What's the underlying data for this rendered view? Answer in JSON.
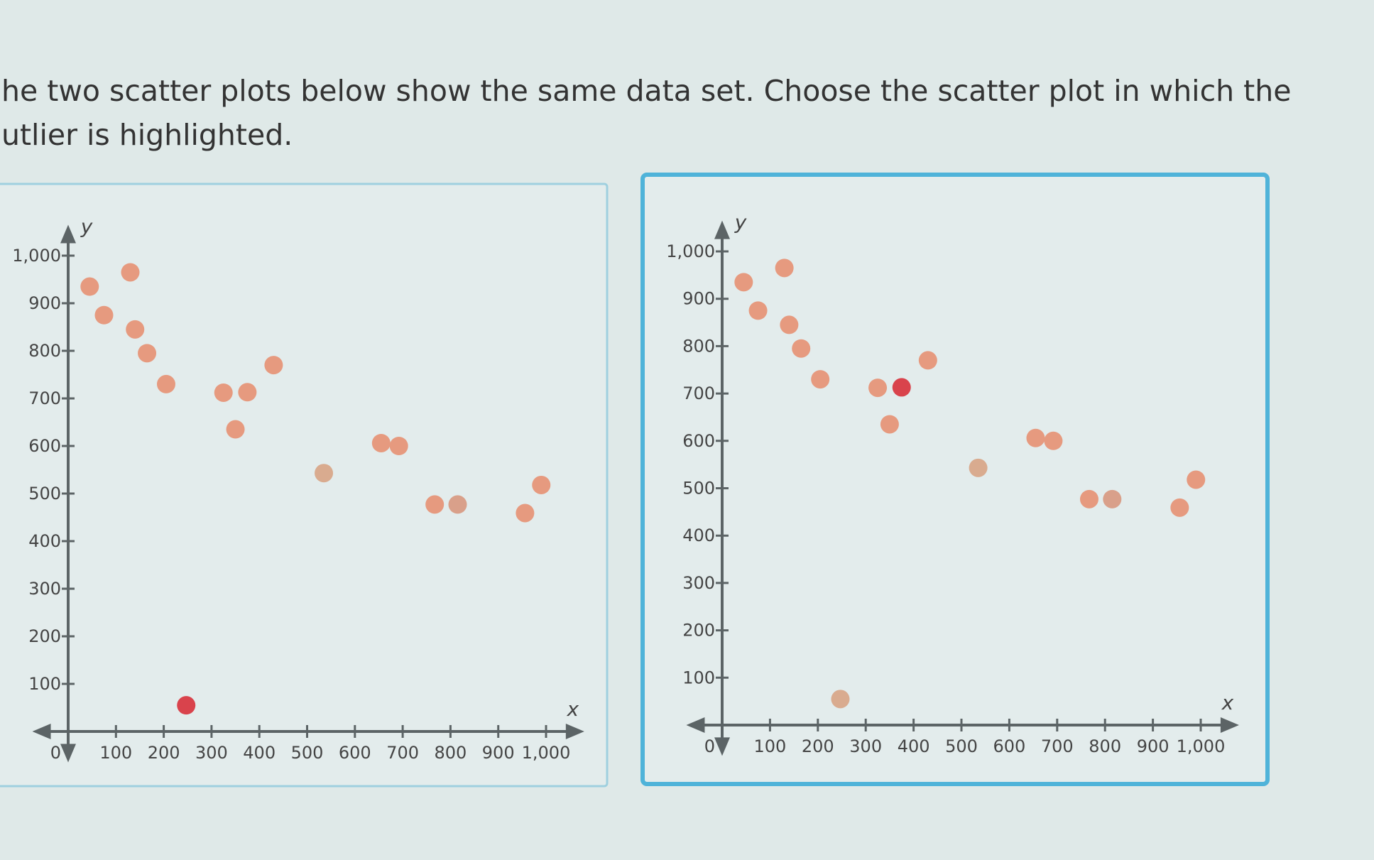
{
  "question": [
    "he two scatter plots below show the same data set. Choose the scatter plot in which the",
    "utlier is highlighted."
  ],
  "chart_data": [
    {
      "type": "scatter",
      "x_label": "x",
      "y_label": "y",
      "x": [
        45,
        130,
        75,
        140,
        165,
        205,
        325,
        375,
        430,
        350,
        535,
        655,
        692,
        767,
        815,
        956,
        990,
        247
      ],
      "y": [
        935,
        965,
        875,
        845,
        795,
        730,
        712,
        713,
        770,
        635,
        543,
        606,
        600,
        477,
        477,
        459,
        518,
        55
      ],
      "point_colors": [
        "#e69a7f",
        "#e69a7f",
        "#e69a7f",
        "#e69a7f",
        "#e69a7f",
        "#e69a7f",
        "#e69a7f",
        "#e69a7f",
        "#e69a7f",
        "#e69a7f",
        "#d9ab8f",
        "#e69a7f",
        "#e69a7f",
        "#e69a7f",
        "#d9a08a",
        "#e69a7f",
        "#e69a7f",
        "#d9434c"
      ],
      "xlim": [
        -75,
        1080
      ],
      "ylim": [
        -65,
        1065
      ],
      "xticks": [
        0,
        100,
        200,
        300,
        400,
        500,
        600,
        700,
        800,
        900,
        {
          "value": 1000,
          "label": "1,000"
        }
      ],
      "yticks": [
        100,
        200,
        300,
        400,
        500,
        600,
        700,
        800,
        900,
        {
          "value": 1000,
          "label": "1,000"
        }
      ]
    },
    {
      "type": "scatter",
      "x_label": "x",
      "y_label": "y",
      "x": [
        45,
        130,
        75,
        140,
        165,
        205,
        325,
        375,
        430,
        350,
        535,
        655,
        692,
        767,
        815,
        956,
        990,
        247
      ],
      "y": [
        935,
        965,
        875,
        845,
        795,
        730,
        712,
        713,
        770,
        635,
        543,
        606,
        600,
        477,
        477,
        459,
        518,
        55
      ],
      "point_colors": [
        "#e69a7f",
        "#e69a7f",
        "#e69a7f",
        "#e69a7f",
        "#e69a7f",
        "#e69a7f",
        "#e69a7f",
        "#d9434c",
        "#e69a7f",
        "#e69a7f",
        "#d9ab8f",
        "#e69a7f",
        "#e69a7f",
        "#e69a7f",
        "#d9a08a",
        "#e69a7f",
        "#e69a7f",
        "#d9ab8f"
      ],
      "xlim": [
        -75,
        1080
      ],
      "ylim": [
        -65,
        1065
      ],
      "xticks": [
        0,
        100,
        200,
        300,
        400,
        500,
        600,
        700,
        800,
        900,
        {
          "value": 1000,
          "label": "1,000"
        }
      ],
      "yticks": [
        100,
        200,
        300,
        400,
        500,
        600,
        700,
        800,
        900,
        {
          "value": 1000,
          "label": "1,000"
        }
      ]
    }
  ]
}
